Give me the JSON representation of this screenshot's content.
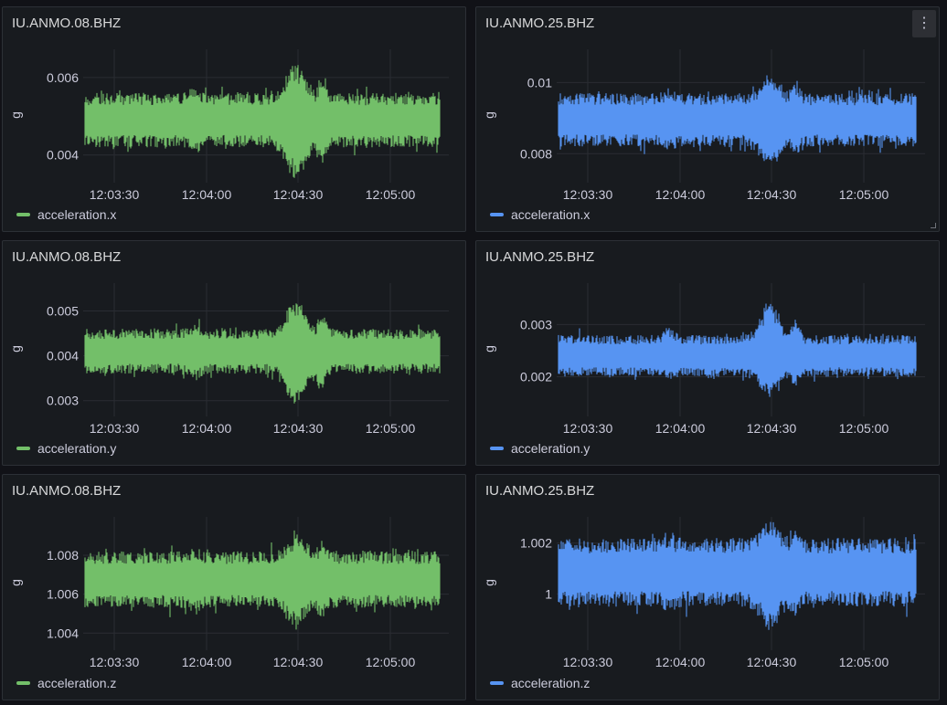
{
  "dashboard": {
    "panels": [
      {
        "title": "IU.ANMO.08.BHZ",
        "legend": "acceleration.x",
        "unit": "g",
        "color": "#73bf69",
        "yticks": [
          {
            "v": 0.006,
            "label": "0.006"
          },
          {
            "v": 0.004,
            "label": "0.004"
          }
        ],
        "ylim": [
          0.00338,
          0.00668
        ]
      },
      {
        "title": "IU.ANMO.25.BHZ",
        "legend": "acceleration.x",
        "unit": "g",
        "color": "#5794f2",
        "yticks": [
          {
            "v": 0.01,
            "label": "0.01"
          },
          {
            "v": 0.008,
            "label": "0.008"
          }
        ],
        "ylim": [
          0.00729,
          0.01088
        ]
      },
      {
        "title": "IU.ANMO.08.BHZ",
        "legend": "acceleration.y",
        "unit": "g",
        "color": "#73bf69",
        "yticks": [
          {
            "v": 0.005,
            "label": "0.005"
          },
          {
            "v": 0.004,
            "label": "0.004"
          },
          {
            "v": 0.003,
            "label": "0.003"
          }
        ],
        "ylim": [
          0.00273,
          0.00558
        ]
      },
      {
        "title": "IU.ANMO.25.BHZ",
        "legend": "acceleration.y",
        "unit": "g",
        "color": "#5794f2",
        "yticks": [
          {
            "v": 0.003,
            "label": "0.003"
          },
          {
            "v": 0.002,
            "label": "0.002"
          }
        ],
        "ylim": [
          0.00131,
          0.00376
        ]
      },
      {
        "title": "IU.ANMO.08.BHZ",
        "legend": "acceleration.z",
        "unit": "g",
        "color": "#73bf69",
        "yticks": [
          {
            "v": 1.008,
            "label": "1.008"
          },
          {
            "v": 1.006,
            "label": "1.006"
          },
          {
            "v": 1.004,
            "label": "1.004"
          }
        ],
        "ylim": [
          1.00331,
          1.00988
        ]
      },
      {
        "title": "IU.ANMO.25.BHZ",
        "legend": "acceleration.z",
        "unit": "g",
        "color": "#5794f2",
        "yticks": [
          {
            "v": 1.002,
            "label": "1.002"
          },
          {
            "v": 1,
            "label": "1"
          }
        ],
        "ylim": [
          0.99793,
          1.00296
        ]
      }
    ],
    "xticks": [
      "12:03:30",
      "12:04:00",
      "12:04:30",
      "12:05:00"
    ],
    "menu_icon": "vertical-ellipsis-icon"
  },
  "chart_data": [
    {
      "type": "area",
      "title": "IU.ANMO.08.BHZ",
      "ylabel": "g",
      "series": [
        {
          "name": "acceleration.x",
          "color": "#73bf69"
        }
      ],
      "x": [
        "12:03:30",
        "12:04:00",
        "12:04:30",
        "12:05:00"
      ],
      "ylim": [
        0.0034,
        0.0067
      ],
      "envelope": {
        "baseline_min": 0.0042,
        "baseline_max": 0.0056,
        "peak_max": 0.0065,
        "peak_min": 0.0032,
        "peak_time": "12:04:30"
      }
    },
    {
      "type": "area",
      "title": "IU.ANMO.25.BHZ",
      "ylabel": "g",
      "series": [
        {
          "name": "acceleration.x",
          "color": "#5794f2"
        }
      ],
      "x": [
        "12:03:30",
        "12:04:00",
        "12:04:30",
        "12:05:00"
      ],
      "ylim": [
        0.0073,
        0.0109
      ],
      "envelope": {
        "baseline_min": 0.0082,
        "baseline_max": 0.0097,
        "peak_max": 0.0103,
        "peak_min": 0.0075,
        "peak_time": "12:04:30"
      }
    },
    {
      "type": "area",
      "title": "IU.ANMO.08.BHZ",
      "ylabel": "g",
      "series": [
        {
          "name": "acceleration.y",
          "color": "#73bf69"
        }
      ],
      "x": [
        "12:03:30",
        "12:04:00",
        "12:04:30",
        "12:05:00"
      ],
      "ylim": [
        0.0027,
        0.0056
      ],
      "envelope": {
        "baseline_min": 0.0036,
        "baseline_max": 0.0046,
        "peak_max": 0.0053,
        "peak_min": 0.0028,
        "peak_time": "12:04:30"
      }
    },
    {
      "type": "area",
      "title": "IU.ANMO.25.BHZ",
      "ylabel": "g",
      "series": [
        {
          "name": "acceleration.y",
          "color": "#5794f2"
        }
      ],
      "x": [
        "12:03:30",
        "12:04:00",
        "12:04:30",
        "12:05:00"
      ],
      "ylim": [
        0.0013,
        0.0038
      ],
      "envelope": {
        "baseline_min": 0.002,
        "baseline_max": 0.0028,
        "peak_max": 0.0035,
        "peak_min": 0.0016,
        "peak_time": "12:04:30"
      }
    },
    {
      "type": "area",
      "title": "IU.ANMO.08.BHZ",
      "ylabel": "g",
      "series": [
        {
          "name": "acceleration.z",
          "color": "#73bf69"
        }
      ],
      "x": [
        "12:03:30",
        "12:04:00",
        "12:04:30",
        "12:05:00"
      ],
      "ylim": [
        1.0033,
        1.0099
      ],
      "envelope": {
        "baseline_min": 1.0053,
        "baseline_max": 1.0082,
        "peak_max": 1.0092,
        "peak_min": 1.0041,
        "peak_time": "12:04:30"
      }
    },
    {
      "type": "area",
      "title": "IU.ANMO.25.BHZ",
      "ylabel": "g",
      "series": [
        {
          "name": "acceleration.z",
          "color": "#5794f2"
        }
      ],
      "x": [
        "12:03:30",
        "12:04:00",
        "12:04:30",
        "12:05:00"
      ],
      "ylim": [
        0.9979,
        1.003
      ],
      "envelope": {
        "baseline_min": 0.9995,
        "baseline_max": 1.0022,
        "peak_max": 1.0029,
        "peak_min": 0.9985,
        "peak_time": "12:04:30"
      }
    }
  ]
}
